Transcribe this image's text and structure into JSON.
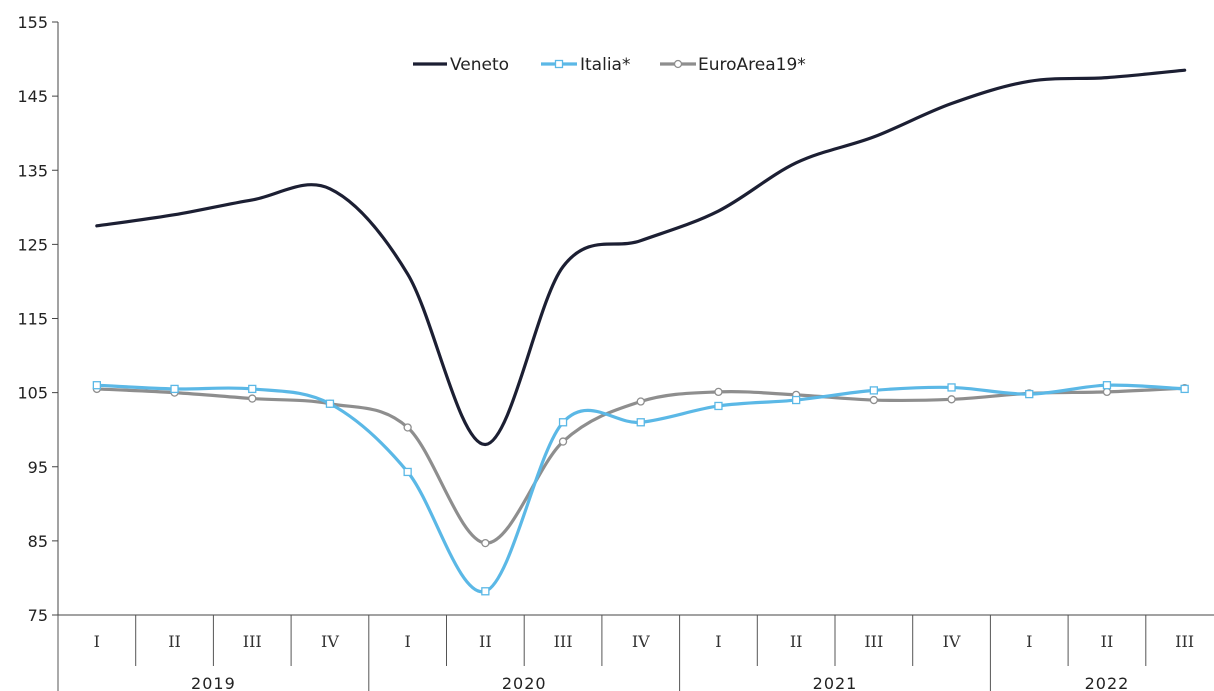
{
  "chart_data": {
    "type": "line",
    "title": "",
    "xlabel": "",
    "ylabel": "",
    "ylim": [
      75,
      155
    ],
    "yticks": [
      75,
      85,
      95,
      105,
      115,
      125,
      135,
      145,
      155
    ],
    "grid": false,
    "legend_position": "top-center",
    "categories": [
      "I",
      "II",
      "III",
      "IV",
      "I",
      "II",
      "III",
      "IV",
      "I",
      "II",
      "III",
      "IV",
      "I",
      "II",
      "III"
    ],
    "year_groups": [
      {
        "label": "2019",
        "span": 4
      },
      {
        "label": "2020",
        "span": 4
      },
      {
        "label": "2021",
        "span": 4
      },
      {
        "label": "2022",
        "span": 3
      }
    ],
    "series": [
      {
        "name": "Veneto",
        "color": "#1c1f33",
        "marker": "none",
        "values": [
          127.5,
          129,
          131,
          132.5,
          121,
          98,
          122,
          125.5,
          129.5,
          136,
          139.5,
          144,
          147,
          147.5,
          148.5
        ]
      },
      {
        "name": "Italia*",
        "color": "#5bb8e6",
        "marker": "square",
        "values": [
          106,
          105.5,
          105.5,
          103.5,
          94.3,
          78.2,
          101,
          101,
          103.2,
          104,
          105.3,
          105.7,
          104.8,
          106,
          105.5
        ]
      },
      {
        "name": "EuroArea19*",
        "color": "#8e8e8e",
        "marker": "circle",
        "values": [
          105.5,
          105,
          104.2,
          103.5,
          100.3,
          84.7,
          98.4,
          103.8,
          105.1,
          104.7,
          104,
          104.1,
          104.9,
          105.1,
          105.6
        ]
      }
    ]
  }
}
